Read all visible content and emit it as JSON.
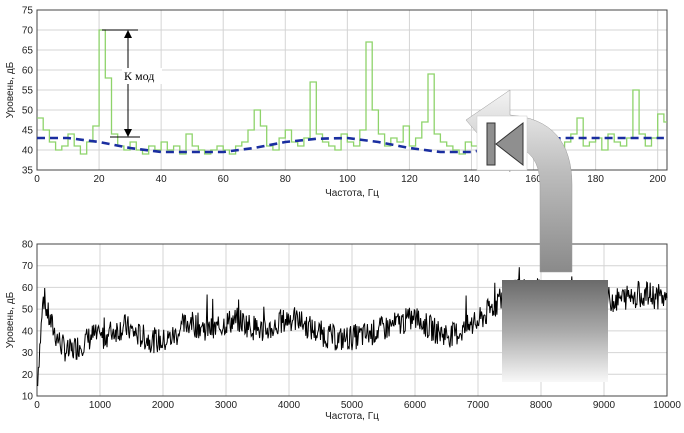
{
  "chart_data": [
    {
      "type": "line",
      "title": "",
      "xlabel": "Частота, Гц",
      "ylabel": "Уровень, дБ",
      "xlim": [
        0,
        203
      ],
      "ylim": [
        35,
        75
      ],
      "xticks": [
        0,
        20,
        40,
        60,
        80,
        100,
        120,
        140,
        160,
        180,
        200
      ],
      "yticks": [
        35,
        40,
        45,
        50,
        55,
        60,
        65,
        70,
        75
      ],
      "grid": true,
      "colors": {
        "spectrum": "#8ed36a",
        "envelope": "#1a2ea0"
      },
      "series": [
        {
          "style": "green-stepped",
          "x": [
            0,
            2,
            4,
            6,
            8,
            10,
            12,
            14,
            16,
            18,
            20,
            22,
            24,
            26,
            28,
            30,
            32,
            34,
            36,
            38,
            40,
            42,
            44,
            46,
            48,
            50,
            52,
            54,
            56,
            58,
            60,
            62,
            64,
            66,
            68,
            70,
            72,
            74,
            76,
            78,
            80,
            82,
            84,
            86,
            88,
            90,
            92,
            94,
            96,
            98,
            100,
            102,
            104,
            106,
            108,
            110,
            112,
            114,
            116,
            118,
            120,
            122,
            124,
            126,
            128,
            130,
            132,
            134,
            136,
            138,
            140,
            142,
            144,
            146,
            148,
            150,
            152,
            154,
            156,
            158,
            160,
            162,
            164,
            166,
            168,
            170,
            172,
            174,
            176,
            178,
            180,
            182,
            184,
            186,
            188,
            190,
            192,
            194,
            196,
            198,
            200,
            202
          ],
          "values": [
            48,
            45,
            42,
            40,
            41,
            44,
            41,
            39,
            42,
            46,
            70,
            58,
            44,
            41,
            40,
            42,
            40,
            39,
            41,
            40,
            42,
            40,
            41,
            39,
            44,
            41,
            40,
            39,
            40,
            41,
            40,
            39,
            41,
            42,
            45,
            50,
            46,
            41,
            40,
            43,
            45,
            42,
            41,
            43,
            57,
            44,
            42,
            41,
            40,
            44,
            42,
            41,
            45,
            67,
            50,
            44,
            41,
            43,
            42,
            46,
            41,
            43,
            47,
            59,
            44,
            42,
            41,
            40,
            39,
            42,
            41,
            43,
            42,
            41,
            44,
            40,
            42,
            44,
            41,
            43,
            45,
            42,
            41,
            43,
            40,
            42,
            44,
            48,
            41,
            42,
            43,
            40,
            44,
            42,
            41,
            43,
            55,
            44,
            41,
            43,
            49,
            47
          ]
        },
        {
          "style": "blue-dashed",
          "x": [
            0,
            10,
            20,
            30,
            40,
            50,
            60,
            70,
            80,
            90,
            100,
            110,
            120,
            130,
            140,
            150,
            160,
            170,
            180,
            190,
            200,
            202
          ],
          "values": [
            43,
            43,
            42,
            40.5,
            39.5,
            39.5,
            39.5,
            40.5,
            42,
            42.8,
            43,
            42,
            40.5,
            39.5,
            39.5,
            41,
            42.5,
            43,
            43,
            43,
            43,
            43
          ]
        }
      ]
    },
    {
      "type": "line",
      "title": "",
      "xlabel": "Частота, Гц",
      "ylabel": "Уровень, дБ",
      "xlim": [
        0,
        10000
      ],
      "ylim": [
        10,
        80
      ],
      "xticks": [
        0,
        1000,
        2000,
        3000,
        4000,
        5000,
        6000,
        7000,
        8000,
        9000,
        10000
      ],
      "yticks": [
        10,
        20,
        30,
        40,
        50,
        60,
        70,
        80
      ],
      "grid": true,
      "colors": {
        "spectrum": "#000000"
      },
      "series": [
        {
          "style": "black-noisy",
          "x": [
            0,
            100,
            200,
            300,
            400,
            500,
            600,
            700,
            800,
            900,
            1000,
            1200,
            1400,
            1600,
            1800,
            2000,
            2200,
            2400,
            2600,
            2800,
            3000,
            3200,
            3400,
            3600,
            3800,
            4000,
            4200,
            4400,
            4600,
            4800,
            5000,
            5200,
            5400,
            5600,
            5800,
            6000,
            6200,
            6400,
            6600,
            6800,
            7000,
            7200,
            7400,
            7600,
            7800,
            8000,
            8200,
            8400,
            8600,
            8800,
            9000,
            9200,
            9400,
            9600,
            9800,
            10000
          ],
          "values": [
            15,
            55,
            45,
            38,
            33,
            30,
            32,
            34,
            36,
            38,
            36,
            40,
            42,
            38,
            36,
            35,
            38,
            44,
            42,
            40,
            44,
            45,
            42,
            40,
            42,
            46,
            44,
            40,
            38,
            36,
            37,
            38,
            40,
            42,
            44,
            46,
            42,
            39,
            38,
            41,
            44,
            50,
            56,
            58,
            60,
            58,
            56,
            54,
            56,
            58,
            55,
            54,
            56,
            57,
            56,
            55
          ]
        }
      ]
    }
  ],
  "annotation": {
    "label": "К мод"
  }
}
